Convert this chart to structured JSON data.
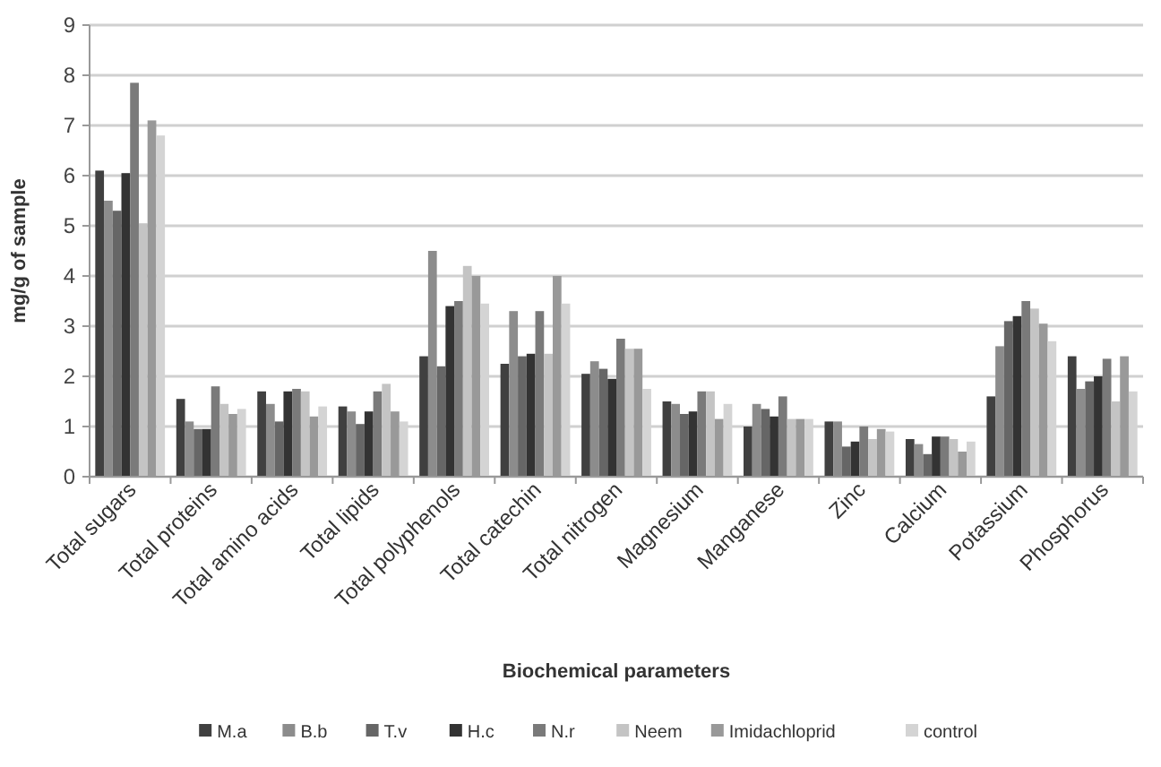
{
  "chart_data": {
    "type": "bar",
    "xlabel": "Biochemical parameters",
    "ylabel": "mg/g of sample",
    "categories": [
      "Total sugars",
      "Total proteins",
      "Total amino acids",
      "Total lipids",
      "Total polyphenols",
      "Total catechin",
      "Total nitrogen",
      "Magnesium",
      "Manganese",
      "Zinc",
      "Calcium",
      "Potassium",
      "Phosphorus"
    ],
    "series": [
      {
        "name": "M.a",
        "color": "#404040",
        "values": [
          6.1,
          1.55,
          1.7,
          1.4,
          2.4,
          2.25,
          2.05,
          1.5,
          1.0,
          1.1,
          0.75,
          1.6,
          2.4
        ]
      },
      {
        "name": "B.b",
        "color": "#8c8c8c",
        "values": [
          5.5,
          1.1,
          1.45,
          1.3,
          4.5,
          3.3,
          2.3,
          1.45,
          1.45,
          1.1,
          0.65,
          2.6,
          1.75
        ]
      },
      {
        "name": "T.v",
        "color": "#666666",
        "values": [
          5.3,
          0.95,
          1.1,
          1.05,
          2.2,
          2.4,
          2.15,
          1.25,
          1.35,
          0.6,
          0.45,
          3.1,
          1.9
        ]
      },
      {
        "name": "H.c",
        "color": "#333333",
        "values": [
          6.05,
          0.95,
          1.7,
          1.3,
          3.4,
          2.45,
          1.95,
          1.3,
          1.2,
          0.7,
          0.8,
          3.2,
          2.0
        ]
      },
      {
        "name": "N.r",
        "color": "#7a7a7a",
        "values": [
          7.85,
          1.8,
          1.75,
          1.7,
          3.5,
          3.3,
          2.75,
          1.7,
          1.6,
          1.0,
          0.8,
          3.5,
          2.35
        ]
      },
      {
        "name": "Neem",
        "color": "#c4c4c4",
        "values": [
          5.05,
          1.45,
          1.7,
          1.85,
          4.2,
          2.45,
          2.55,
          1.7,
          1.15,
          0.75,
          0.75,
          3.35,
          1.5
        ]
      },
      {
        "name": "Imidachloprid",
        "color": "#999999",
        "values": [
          7.1,
          1.25,
          1.2,
          1.3,
          4.0,
          4.0,
          2.55,
          1.15,
          1.15,
          0.95,
          0.5,
          3.05,
          2.4
        ]
      },
      {
        "name": "control",
        "color": "#d4d4d4",
        "values": [
          6.8,
          1.35,
          1.4,
          1.1,
          3.45,
          3.45,
          1.75,
          1.45,
          1.15,
          0.9,
          0.7,
          2.7,
          1.7
        ]
      }
    ],
    "ylim": [
      0,
      9
    ],
    "yticks": [
      0,
      1,
      2,
      3,
      4,
      5,
      6,
      7,
      8,
      9
    ],
    "grid": "y",
    "legend": "bottom"
  }
}
